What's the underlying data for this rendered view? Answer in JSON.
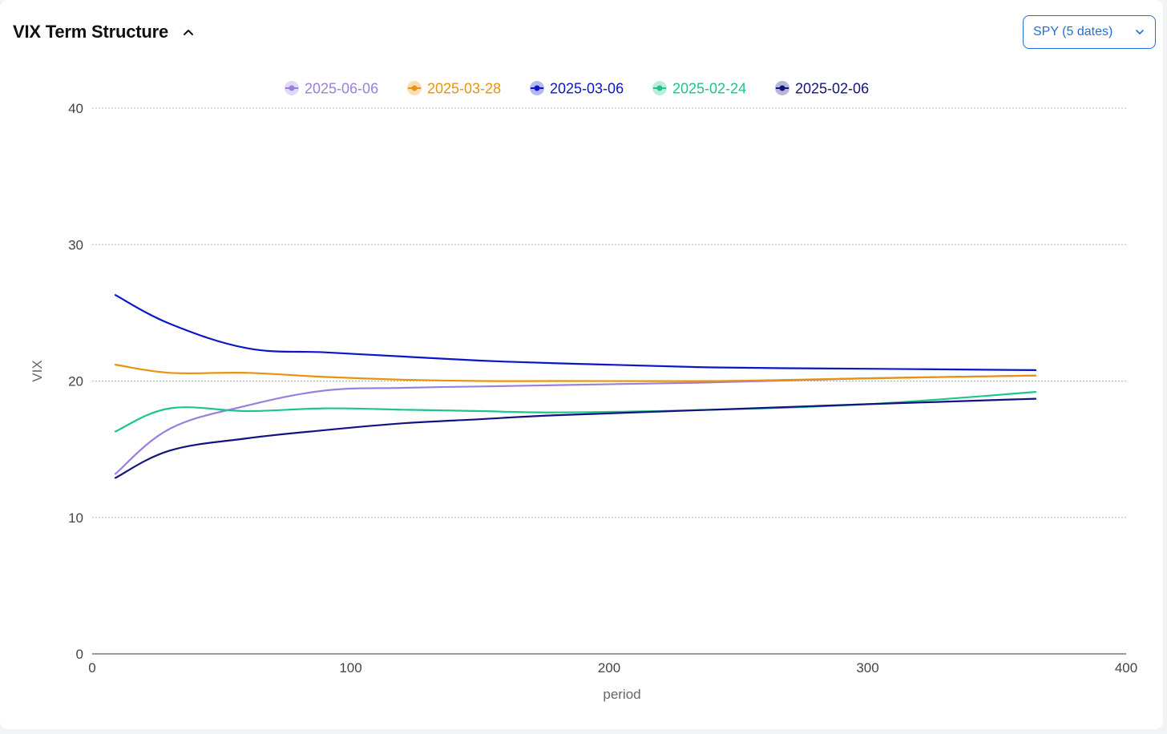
{
  "header": {
    "title": "VIX Term Structure",
    "collapse_icon": "chevron-up-icon"
  },
  "selector": {
    "value": "SPY (5 dates)",
    "icon": "chevron-down-icon"
  },
  "chart_data": {
    "type": "line",
    "xlabel": "period",
    "ylabel": "VIX",
    "xlim": [
      0,
      400
    ],
    "ylim": [
      0,
      40
    ],
    "xticks": [
      0,
      100,
      200,
      300,
      400
    ],
    "yticks": [
      0,
      10,
      20,
      30,
      40
    ],
    "grid": "horizontal-dotted",
    "legend_position": "top-center",
    "series": [
      {
        "name": "2025-06-06",
        "color": "#9b7fe0",
        "x": [
          9,
          30,
          60,
          90,
          120,
          150,
          180,
          240,
          300,
          365
        ],
        "values": [
          13.2,
          16.5,
          18.2,
          19.3,
          19.5,
          19.6,
          19.7,
          19.9,
          20.2,
          20.4
        ]
      },
      {
        "name": "2025-03-28",
        "color": "#e8930e",
        "x": [
          9,
          30,
          60,
          90,
          120,
          150,
          180,
          240,
          300,
          365
        ],
        "values": [
          21.2,
          20.6,
          20.6,
          20.3,
          20.1,
          20.0,
          20.0,
          20.0,
          20.2,
          20.4
        ]
      },
      {
        "name": "2025-03-06",
        "color": "#0a16c9",
        "x": [
          9,
          30,
          60,
          90,
          120,
          150,
          180,
          240,
          300,
          365
        ],
        "values": [
          26.3,
          24.2,
          22.4,
          22.1,
          21.8,
          21.5,
          21.3,
          21.0,
          20.9,
          20.8
        ]
      },
      {
        "name": "2025-02-24",
        "color": "#1ec48c",
        "x": [
          9,
          30,
          60,
          90,
          120,
          150,
          180,
          240,
          300,
          365
        ],
        "values": [
          16.3,
          18.0,
          17.8,
          18.0,
          17.9,
          17.8,
          17.7,
          17.9,
          18.3,
          19.2
        ]
      },
      {
        "name": "2025-02-06",
        "color": "#14127e",
        "x": [
          9,
          30,
          60,
          90,
          120,
          150,
          180,
          240,
          300,
          365
        ],
        "values": [
          12.9,
          14.9,
          15.8,
          16.4,
          16.9,
          17.2,
          17.5,
          17.9,
          18.3,
          18.7
        ]
      }
    ]
  }
}
